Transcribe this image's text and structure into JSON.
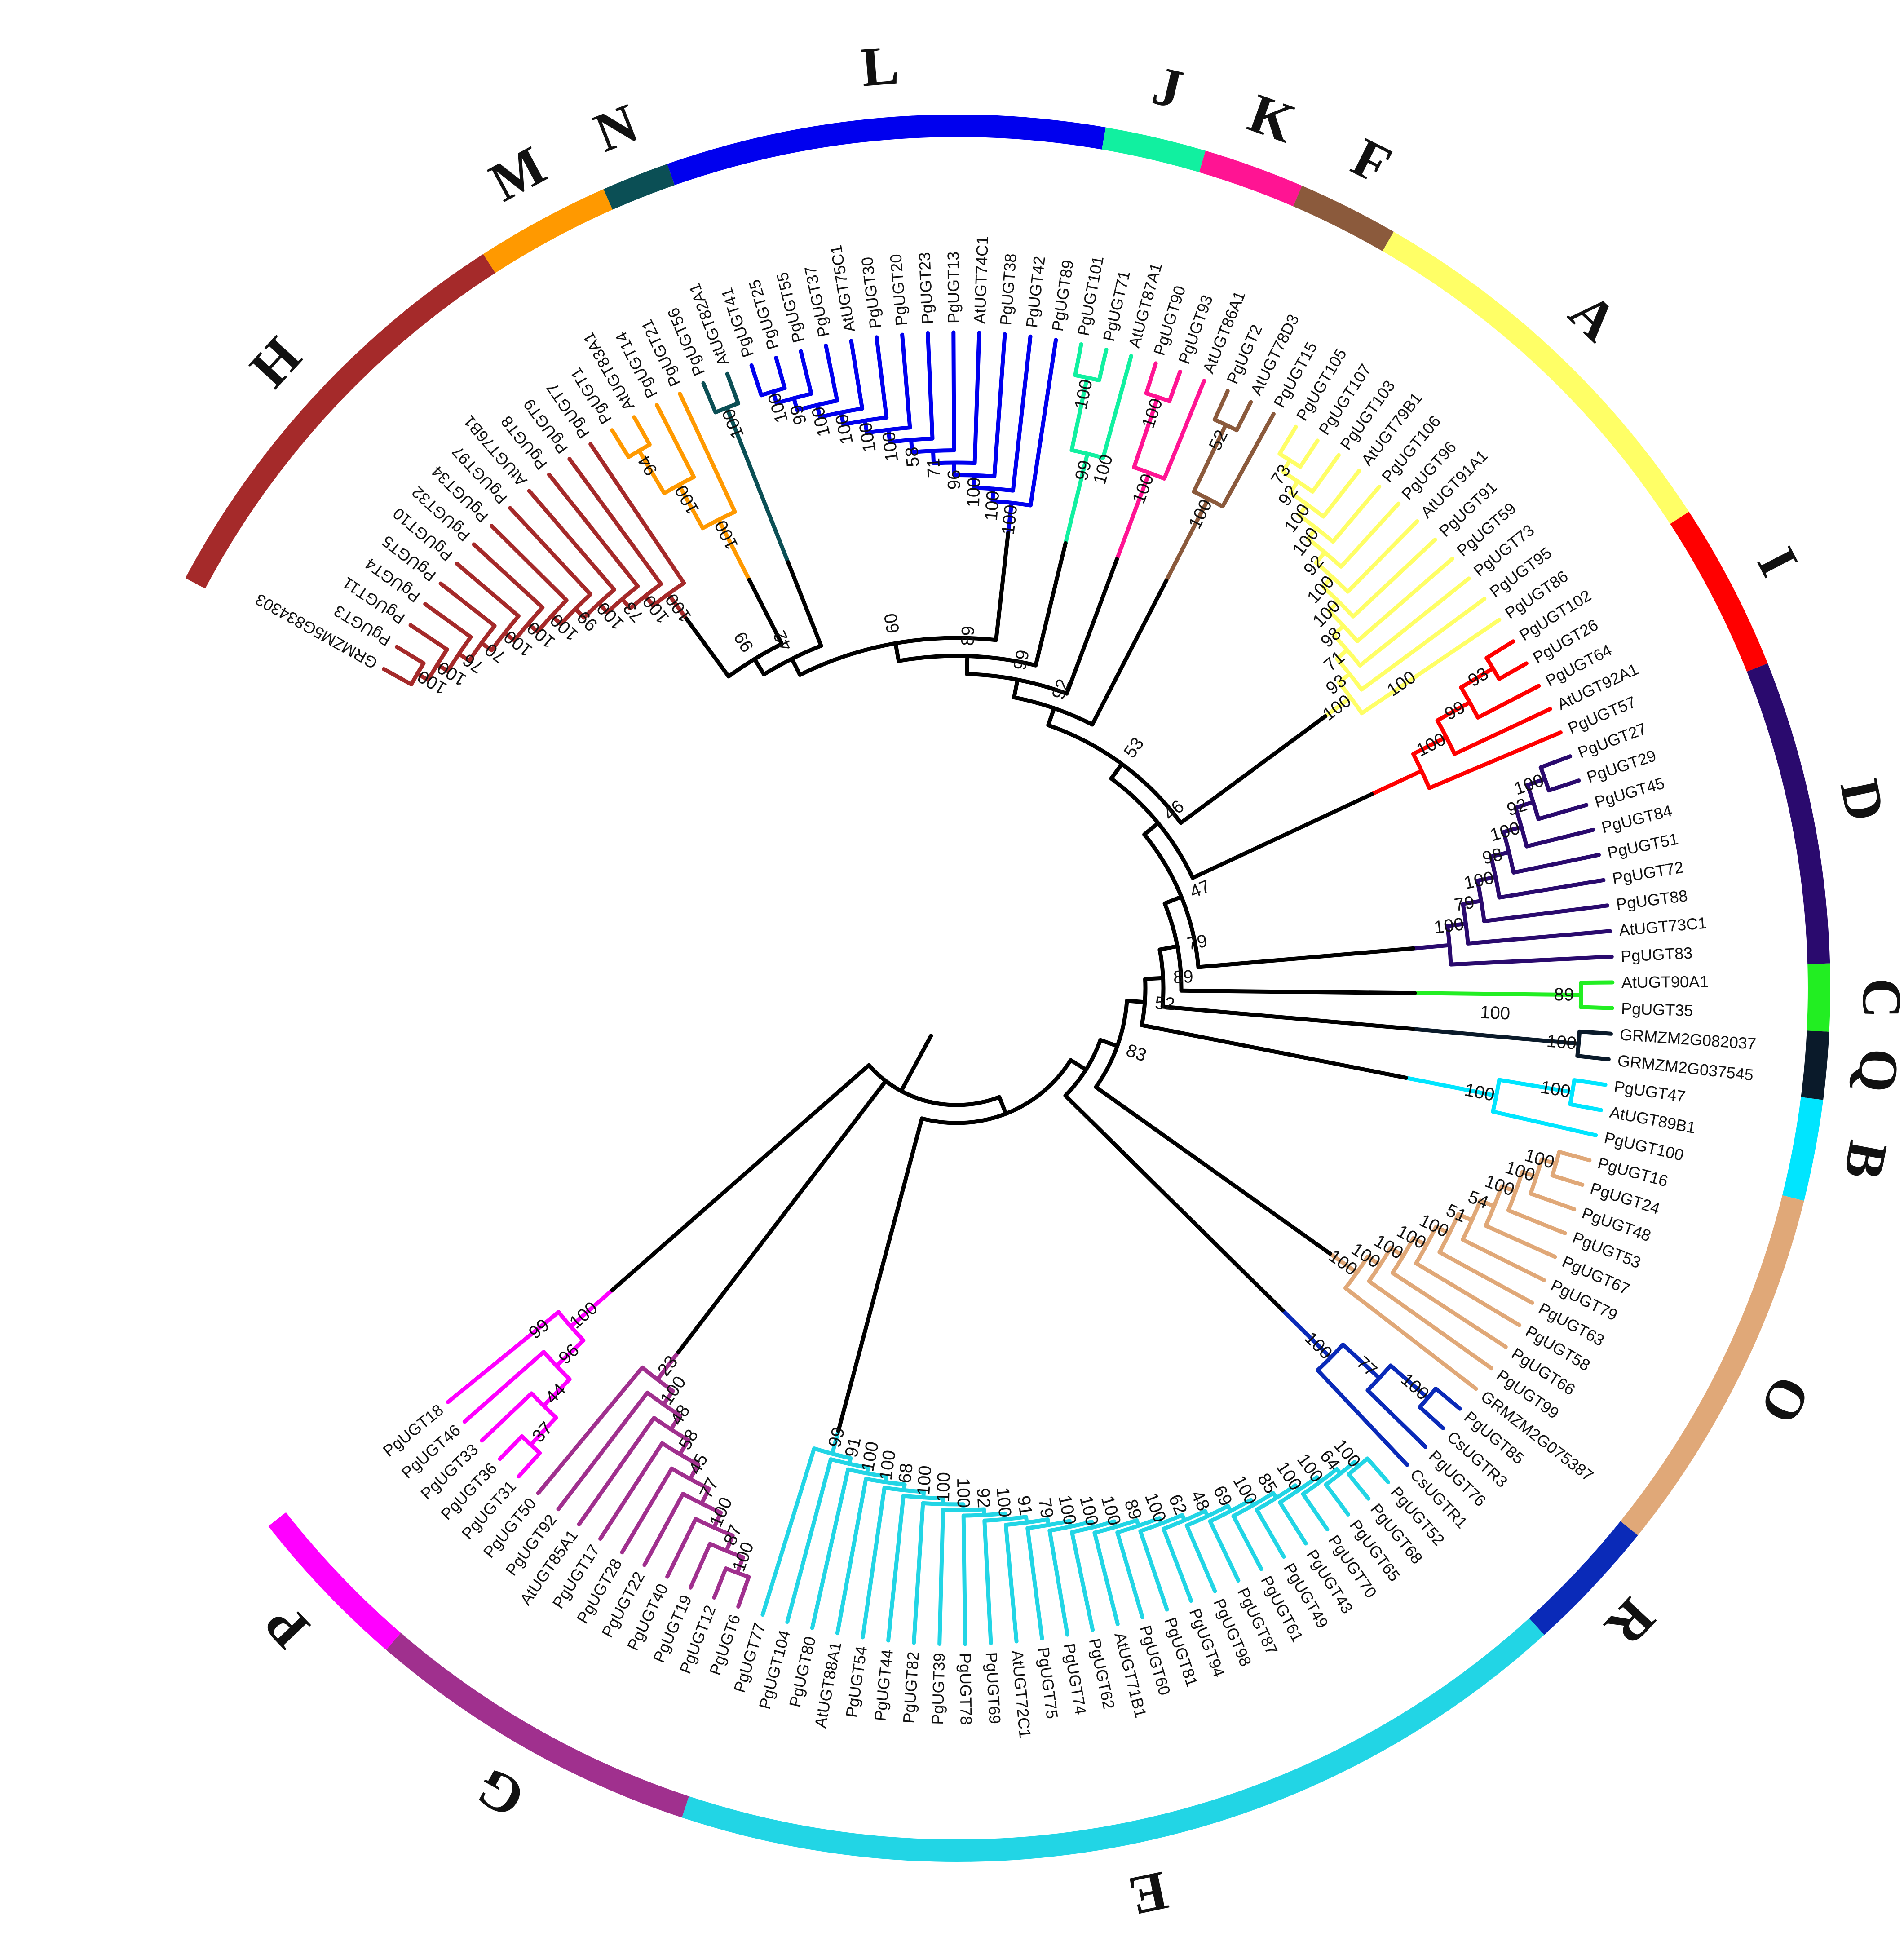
{
  "clades": [
    {
      "label": "H",
      "color": "#a52a2a",
      "leaves": [
        "GRMZM5G834303",
        "PgUGT3",
        "PgUGT11",
        "PgUGT4",
        "PgUGT5",
        "PgUGT10",
        "PgUGT32",
        "PgUGT34",
        "PgUGT97",
        "AtUGT76B1",
        "PgUGT8",
        "PgUGT9",
        "PgUGT7"
      ]
    },
    {
      "label": "M",
      "color": "#ff9900",
      "leaves": [
        "PgUGT1",
        "AtUGT83A1",
        "PgUGT14",
        "PgUGT21"
      ]
    },
    {
      "label": "N",
      "color": "#0b4f55",
      "leaves": [
        "PgUGT56",
        "AtUGT82A1"
      ]
    },
    {
      "label": "L",
      "color": "#0000ee",
      "leaves": [
        "PgUGT41",
        "PgUGT25",
        "PgUGT55",
        "PgUGT37",
        "AtUGT75C1",
        "PgUGT30",
        "PgUGT20",
        "PgUGT23",
        "PgUGT13",
        "AtUGT74C1",
        "PgUGT38",
        "PgUGT42",
        "PgUGT89"
      ]
    },
    {
      "label": "J",
      "color": "#11f0a0",
      "leaves": [
        "PgUGT101",
        "PgUGT71",
        "AtUGT87A1"
      ]
    },
    {
      "label": "K",
      "color": "#ff1493",
      "leaves": [
        "PgUGT90",
        "PgUGT93",
        "AtUGT86A1"
      ]
    },
    {
      "label": "F",
      "color": "#8b5a3c",
      "leaves": [
        "PgUGT2",
        "AtUGT78D3",
        "PgUGT15"
      ]
    },
    {
      "label": "A",
      "color": "#ffff66",
      "leaves": [
        "PgUGT105",
        "PgUGT107",
        "PgUGT103",
        "AtUGT79B1",
        "PgUGT106",
        "PgUGT96",
        "AtUGT91A1",
        "PgUGT91",
        "PgUGT59",
        "PgUGT73",
        "PgUGT95",
        "PgUGT86"
      ]
    },
    {
      "label": "I",
      "color": "#ff0000",
      "leaves": [
        "PgUGT102",
        "PgUGT26",
        "PgUGT64",
        "AtUGT92A1",
        "PgUGT57"
      ]
    },
    {
      "label": "D",
      "color": "#2a0a6e",
      "leaves": [
        "PgUGT27",
        "PgUGT29",
        "PgUGT45",
        "PgUGT84",
        "PgUGT51",
        "PgUGT72",
        "PgUGT88",
        "AtUGT73C1",
        "PgUGT83"
      ]
    },
    {
      "label": "C",
      "color": "#22ee22",
      "leaves": [
        "AtUGT90A1",
        "PgUGT35"
      ]
    },
    {
      "label": "Q",
      "color": "#0a1a2a",
      "leaves": [
        "GRMZM2G082037",
        "GRMZM2G037545"
      ]
    },
    {
      "label": "B",
      "color": "#00e5ff",
      "leaves": [
        "PgUGT47",
        "AtUGT89B1",
        "PgUGT100"
      ]
    },
    {
      "label": "O",
      "color": "#e0a878",
      "leaves": [
        "PgUGT16",
        "PgUGT24",
        "PgUGT48",
        "PgUGT53",
        "PgUGT67",
        "PgUGT79",
        "PgUGT63",
        "PgUGT58",
        "PgUGT66",
        "PgUGT99",
        "GRMZM2G075387"
      ]
    },
    {
      "label": "R",
      "color": "#0a2ab8",
      "leaves": [
        "PgUGT85",
        "CsUGTR3",
        "PgUGT76",
        "CsUGTR1"
      ]
    },
    {
      "label": "E",
      "color": "#22d5e5",
      "leaves": [
        "PgUGT52",
        "PgUGT68",
        "PgUGT65",
        "PgUGT70",
        "PgUGT43",
        "PgUGT49",
        "PgUGT61",
        "PgUGT87",
        "PgUGT98",
        "PgUGT94",
        "PgUGT81",
        "PgUGT60",
        "AtUGT71B1",
        "PgUGT62",
        "PgUGT74",
        "PgUGT75",
        "AtUGT72C1",
        "PgUGT69",
        "PgUGT78",
        "PgUGT39",
        "PgUGT82",
        "PgUGT44",
        "PgUGT54",
        "AtUGT88A1",
        "PgUGT80",
        "PgUGT104",
        "PgUGT77"
      ]
    },
    {
      "label": "G",
      "color": "#a0308e",
      "leaves": [
        "PgUGT6",
        "PgUGT12",
        "PgUGT19",
        "PgUGT40",
        "PgUGT22",
        "PgUGT28",
        "PgUGT17",
        "AtUGT85A1",
        "PgUGT92",
        "PgUGT50"
      ]
    },
    {
      "label": "P",
      "color": "#ff00ff",
      "leaves": [
        "PgUGT31",
        "PgUGT36",
        "PgUGT33",
        "PgUGT46",
        "PgUGT18"
      ]
    }
  ],
  "root_bootstraps": [
    "99",
    "42",
    "60",
    "89",
    "99",
    "92",
    "53",
    "46",
    "47",
    "79",
    "89",
    "52",
    "83"
  ],
  "clade_bootstraps": {
    "H": [
      "100",
      "100",
      "76",
      "70",
      "100",
      "100",
      "100",
      "99",
      "100",
      "73",
      "100",
      "100"
    ],
    "M": [
      "94",
      "100",
      "100"
    ],
    "N": [
      "100"
    ],
    "L": [
      "100",
      "99",
      "100",
      "100",
      "100",
      "100",
      "58",
      "71",
      "96",
      "100",
      "100",
      "100"
    ],
    "J": [
      "100",
      "99",
      "100"
    ],
    "K": [
      "100",
      "100"
    ],
    "F": [
      "52",
      "100"
    ],
    "A": [
      "73",
      "92",
      "100",
      "100",
      "92",
      "100",
      "100",
      "98",
      "71",
      "93",
      "100",
      "100"
    ],
    "I": [
      "93",
      "99",
      "100"
    ],
    "D": [
      "100",
      "92",
      "100",
      "98",
      "100",
      "79",
      "100"
    ],
    "C": [
      "89",
      "100"
    ],
    "Q": [
      "100"
    ],
    "B": [
      "100",
      "100"
    ],
    "O": [
      "100",
      "100",
      "100",
      "54",
      "51",
      "100",
      "100",
      "100",
      "100",
      "100"
    ],
    "R": [
      "100",
      "77",
      "100"
    ],
    "E": [
      "100",
      "64",
      "100",
      "100",
      "85",
      "100",
      "69",
      "48",
      "62",
      "100",
      "89",
      "100",
      "100",
      "100",
      "79",
      "91",
      "100",
      "92",
      "100",
      "100",
      "100",
      "68",
      "100",
      "100",
      "91",
      "99"
    ],
    "G": [
      "100",
      "87",
      "100",
      "77",
      "45",
      "58",
      "48",
      "100",
      "23"
    ],
    "P": [
      "37",
      "44",
      "96",
      "100",
      "99"
    ]
  }
}
